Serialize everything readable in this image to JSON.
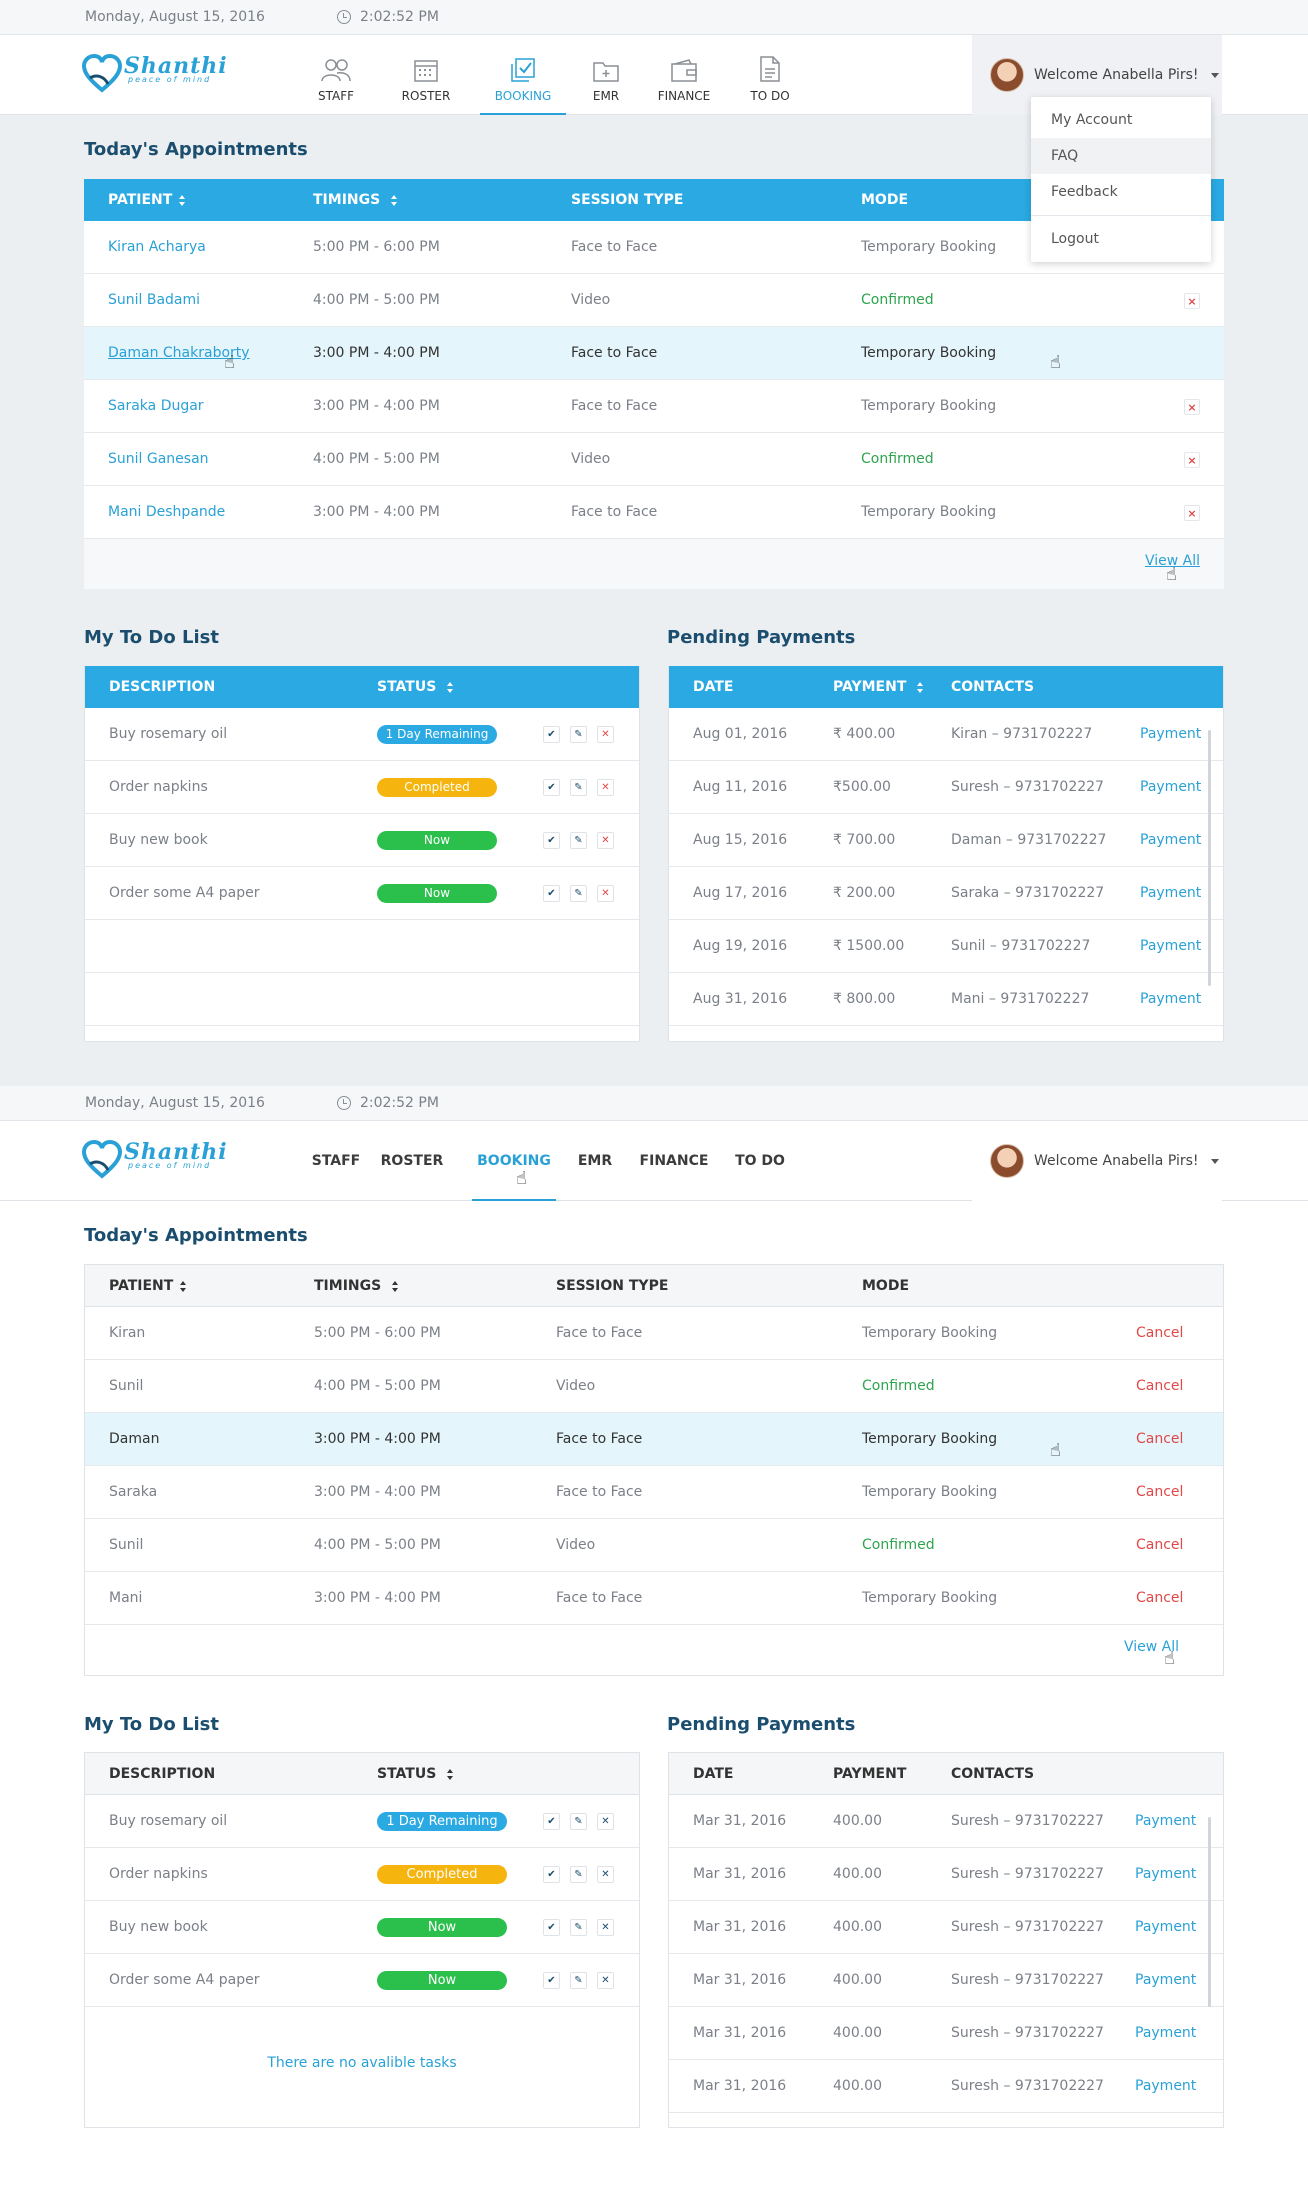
{
  "screen1": {
    "date": "Monday, August 15, 2016",
    "time": "2:02:52 PM",
    "logo": {
      "name": "Shanthi",
      "tagline": "peace of mind"
    },
    "nav": [
      {
        "label": "STAFF",
        "icon": "people-icon"
      },
      {
        "label": "ROSTER",
        "icon": "calendar-icon"
      },
      {
        "label": "BOOKING",
        "icon": "booking-check-icon",
        "active": true
      },
      {
        "label": "EMR",
        "icon": "folder-plus-icon"
      },
      {
        "label": "FINANCE",
        "icon": "wallet-icon"
      },
      {
        "label": "TO DO",
        "icon": "document-icon"
      }
    ],
    "user": {
      "welcome": "Welcome Anabella Pirs!"
    },
    "user_menu": [
      "My Account",
      "FAQ",
      "Feedback",
      "Logout"
    ],
    "appointments": {
      "title": "Today's Appointments",
      "headers": [
        "PATIENT",
        "TIMINGS",
        "SESSION TYPE",
        "MODE"
      ],
      "rows": [
        {
          "patient": "Kiran Acharya",
          "timing": "5:00 PM - 6:00 PM",
          "session": "Face to Face",
          "mode": "Temporary Booking",
          "confirmed": false
        },
        {
          "patient": "Sunil Badami",
          "timing": "4:00 PM - 5:00 PM",
          "session": "Video",
          "mode": "Confirmed",
          "confirmed": true
        },
        {
          "patient": "Daman Chakraborty",
          "timing": "3:00 PM - 4:00 PM",
          "session": "Face to Face",
          "mode": "Temporary Booking",
          "confirmed": false,
          "selected": true
        },
        {
          "patient": "Saraka Dugar",
          "timing": "3:00 PM - 4:00 PM",
          "session": "Face to Face",
          "mode": "Temporary Booking",
          "confirmed": false
        },
        {
          "patient": "Sunil Ganesan",
          "timing": "4:00 PM - 5:00 PM",
          "session": "Video",
          "mode": "Confirmed",
          "confirmed": true
        },
        {
          "patient": "Mani Deshpande",
          "timing": "3:00 PM - 4:00 PM",
          "session": "Face to Face",
          "mode": "Temporary Booking",
          "confirmed": false
        }
      ],
      "view_all": "View All"
    },
    "todo": {
      "title": "My To Do List",
      "headers": [
        "DESCRIPTION",
        "STATUS"
      ],
      "rows": [
        {
          "desc": "Buy rosemary oil",
          "status": "1 Day Remaining",
          "color": "#2aa9e3"
        },
        {
          "desc": "Order napkins",
          "status": "Completed",
          "color": "#f5b50e"
        },
        {
          "desc": "Buy new book",
          "status": "Now",
          "color": "#2bbf4c"
        },
        {
          "desc": "Order some A4 paper",
          "status": "Now",
          "color": "#2bbf4c"
        }
      ]
    },
    "payments": {
      "title": "Pending Payments",
      "headers": [
        "DATE",
        "PAYMENT",
        "CONTACTS"
      ],
      "rows": [
        {
          "date": "Aug 01, 2016",
          "amount": "₹ 400.00",
          "contact": "Kiran – 9731702227",
          "action": "Payment"
        },
        {
          "date": "Aug 11, 2016",
          "amount": "₹500.00",
          "contact": "Suresh – 9731702227",
          "action": "Payment"
        },
        {
          "date": "Aug 15, 2016",
          "amount": "₹ 700.00",
          "contact": "Daman – 9731702227",
          "action": "Payment"
        },
        {
          "date": "Aug 17, 2016",
          "amount": "₹ 200.00",
          "contact": "Saraka – 9731702227",
          "action": "Payment"
        },
        {
          "date": "Aug 19, 2016",
          "amount": "₹ 1500.00",
          "contact": "Sunil – 9731702227",
          "action": "Payment"
        },
        {
          "date": "Aug 31, 2016",
          "amount": "₹ 800.00",
          "contact": "Mani – 9731702227",
          "action": "Payment"
        }
      ]
    }
  },
  "screen2": {
    "date": "Monday, August 15, 2016",
    "time": "2:02:52 PM",
    "logo": {
      "name": "Shanthi",
      "tagline": "peace of mind"
    },
    "nav": [
      {
        "label": "STAFF"
      },
      {
        "label": "ROSTER"
      },
      {
        "label": "BOOKING",
        "active": true
      },
      {
        "label": "EMR"
      },
      {
        "label": "FINANCE"
      },
      {
        "label": "TO DO"
      }
    ],
    "user": {
      "welcome": "Welcome Anabella Pirs!"
    },
    "appointments": {
      "title": "Today's Appointments",
      "headers": [
        "PATIENT",
        "TIMINGS",
        "SESSION TYPE",
        "MODE"
      ],
      "rows": [
        {
          "patient": "Kiran",
          "timing": "5:00 PM - 6:00 PM",
          "session": "Face to Face",
          "mode": "Temporary Booking",
          "confirmed": false,
          "action": "Cancel"
        },
        {
          "patient": "Sunil",
          "timing": "4:00 PM - 5:00 PM",
          "session": "Video",
          "mode": "Confirmed",
          "confirmed": true,
          "action": "Cancel"
        },
        {
          "patient": "Daman",
          "timing": "3:00 PM - 4:00 PM",
          "session": "Face to Face",
          "mode": "Temporary Booking",
          "confirmed": false,
          "action": "Cancel",
          "selected": true
        },
        {
          "patient": "Saraka",
          "timing": "3:00 PM - 4:00 PM",
          "session": "Face to Face",
          "mode": "Temporary Booking",
          "confirmed": false,
          "action": "Cancel"
        },
        {
          "patient": "Sunil",
          "timing": "4:00 PM - 5:00 PM",
          "session": "Video",
          "mode": "Confirmed",
          "confirmed": true,
          "action": "Cancel"
        },
        {
          "patient": "Mani",
          "timing": "3:00 PM - 4:00 PM",
          "session": "Face to Face",
          "mode": "Temporary Booking",
          "confirmed": false,
          "action": "Cancel"
        }
      ],
      "view_all": "View All"
    },
    "todo": {
      "title": "My To Do List",
      "headers": [
        "DESCRIPTION",
        "STATUS"
      ],
      "rows": [
        {
          "desc": "Buy rosemary oil",
          "status": "1 Day Remaining",
          "color": "#2aa9e3"
        },
        {
          "desc": "Order napkins",
          "status": "Completed",
          "color": "#f5b50e"
        },
        {
          "desc": "Buy new book",
          "status": "Now",
          "color": "#2bbf4c"
        },
        {
          "desc": "Order some A4 paper",
          "status": "Now",
          "color": "#2bbf4c"
        }
      ],
      "empty_text": "There are no avalible tasks"
    },
    "payments": {
      "title": "Pending Payments",
      "headers": [
        "DATE",
        "PAYMENT",
        "CONTACTS"
      ],
      "rows": [
        {
          "date": "Mar 31, 2016",
          "amount": "400.00",
          "contact": "Suresh – 9731702227",
          "action": "Payment"
        },
        {
          "date": "Mar 31, 2016",
          "amount": "400.00",
          "contact": "Suresh – 9731702227",
          "action": "Payment"
        },
        {
          "date": "Mar 31, 2016",
          "amount": "400.00",
          "contact": "Suresh – 9731702227",
          "action": "Payment"
        },
        {
          "date": "Mar 31, 2016",
          "amount": "400.00",
          "contact": "Suresh – 9731702227",
          "action": "Payment"
        },
        {
          "date": "Mar 31, 2016",
          "amount": "400.00",
          "contact": "Suresh – 9731702227",
          "action": "Payment"
        },
        {
          "date": "Mar 31, 2016",
          "amount": "400.00",
          "contact": "Suresh – 9731702227",
          "action": "Payment"
        }
      ]
    }
  },
  "colors": {
    "accent": "#2aa9e3",
    "link": "#2aa1d6",
    "title": "#1b4e6e",
    "confirmed": "#2ea44f",
    "cancel": "#e04848"
  }
}
